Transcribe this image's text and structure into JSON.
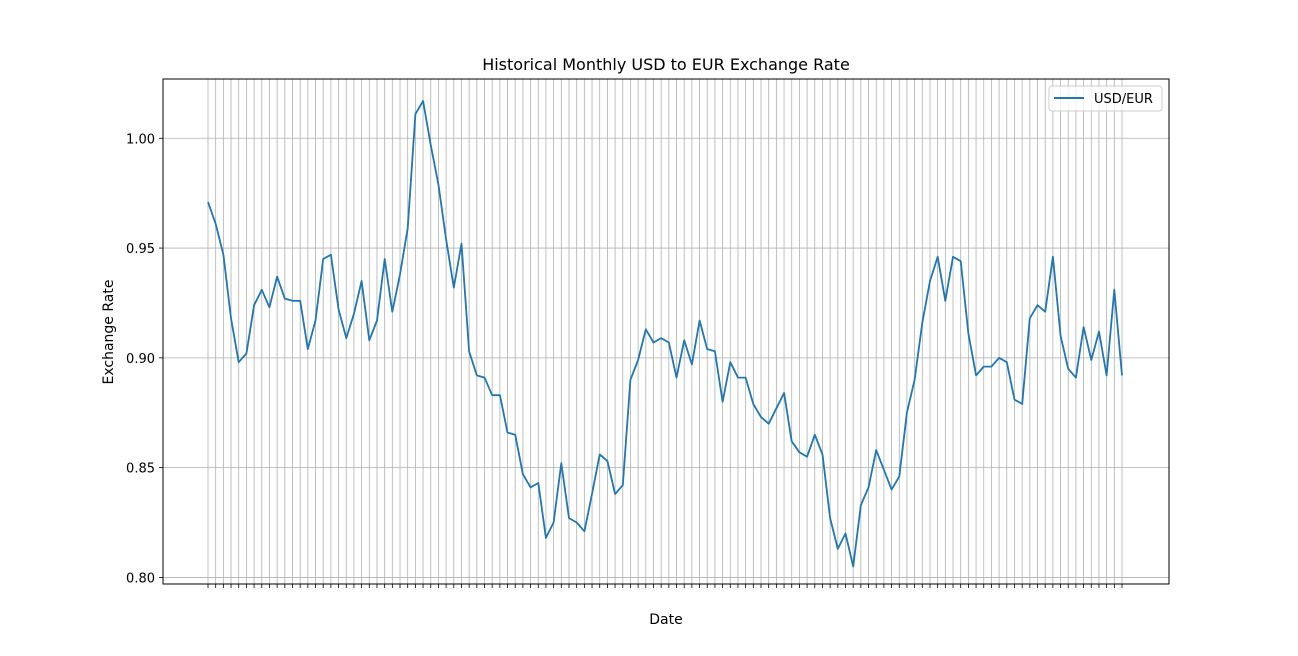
{
  "chart_data": {
    "type": "line",
    "title": "Historical Monthly USD to EUR Exchange Rate",
    "xlabel": "Date",
    "ylabel": "Exchange Rate",
    "ylim": [
      0.797,
      1.027
    ],
    "y_ticks": [
      "0.80",
      "0.85",
      "0.90",
      "0.95",
      "1.00"
    ],
    "x_tick_note": "One tick label per month; labels overlap and are unreadable except the last, which ends in \"16\".",
    "grid": true,
    "legend": {
      "position": "top-right",
      "entries": [
        "USD/EUR"
      ]
    },
    "series": [
      {
        "name": "USD/EUR",
        "color": "#1f77b4",
        "values": [
          0.971,
          0.961,
          0.947,
          0.918,
          0.898,
          0.902,
          0.924,
          0.931,
          0.923,
          0.937,
          0.927,
          0.926,
          0.926,
          0.904,
          0.917,
          0.945,
          0.947,
          0.922,
          0.909,
          0.92,
          0.935,
          0.908,
          0.917,
          0.945,
          0.921,
          0.938,
          0.959,
          1.011,
          1.017,
          0.997,
          0.979,
          0.954,
          0.932,
          0.952,
          0.903,
          0.892,
          0.891,
          0.883,
          0.883,
          0.866,
          0.865,
          0.847,
          0.841,
          0.843,
          0.818,
          0.825,
          0.852,
          0.827,
          0.825,
          0.821,
          0.838,
          0.856,
          0.853,
          0.838,
          0.842,
          0.89,
          0.899,
          0.913,
          0.907,
          0.909,
          0.907,
          0.891,
          0.908,
          0.897,
          0.917,
          0.904,
          0.903,
          0.88,
          0.898,
          0.891,
          0.891,
          0.879,
          0.873,
          0.87,
          0.877,
          0.884,
          0.862,
          0.857,
          0.855,
          0.865,
          0.856,
          0.827,
          0.813,
          0.82,
          0.805,
          0.833,
          0.841,
          0.858,
          0.849,
          0.84,
          0.846,
          0.875,
          0.89,
          0.916,
          0.935,
          0.946,
          0.926,
          0.946,
          0.944,
          0.911,
          0.892,
          0.896,
          0.896,
          0.9,
          0.898,
          0.881,
          0.879,
          0.918,
          0.924,
          0.921,
          0.946,
          0.91,
          0.895,
          0.891,
          0.914,
          0.899,
          0.912,
          0.892,
          0.931,
          0.892
        ]
      }
    ]
  }
}
